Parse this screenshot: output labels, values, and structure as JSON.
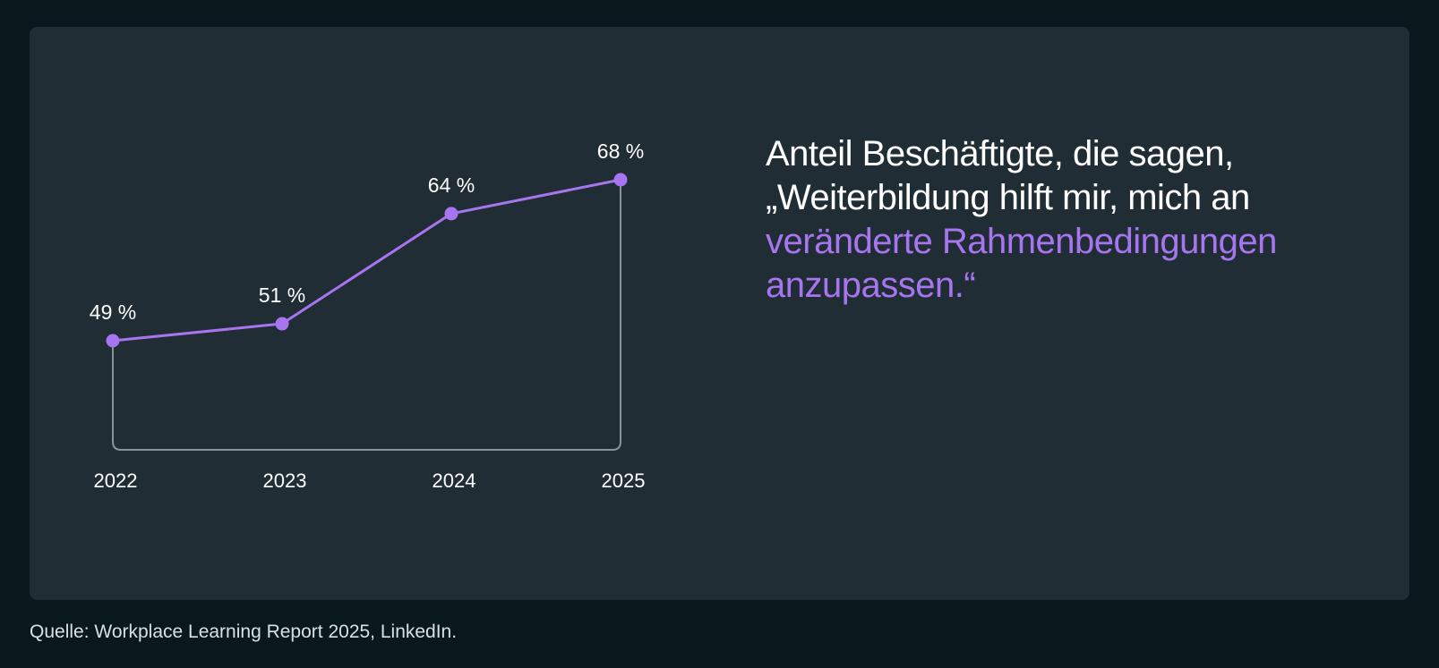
{
  "chart_data": {
    "type": "line",
    "categories": [
      "2022",
      "2023",
      "2024",
      "2025"
    ],
    "values": [
      49,
      51,
      64,
      68
    ],
    "value_labels": [
      "49 %",
      "51 %",
      "64 %",
      "68 %"
    ],
    "line_color": "#a775f0",
    "frame_color": "#8a9498",
    "grid": false
  },
  "headline": {
    "line1": "Anteil Beschäftigte, die sagen,",
    "line2": "„Weiterbildung hilft mir, mich an",
    "line3": "veränderte Rahmenbedingungen",
    "line4": "anzupassen.“"
  },
  "source": "Quelle: Workplace Learning Report 2025, LinkedIn.",
  "colors": {
    "background": "#08181d",
    "card": "#212d34",
    "accent": "#a775f0",
    "text": "#ffffff"
  }
}
